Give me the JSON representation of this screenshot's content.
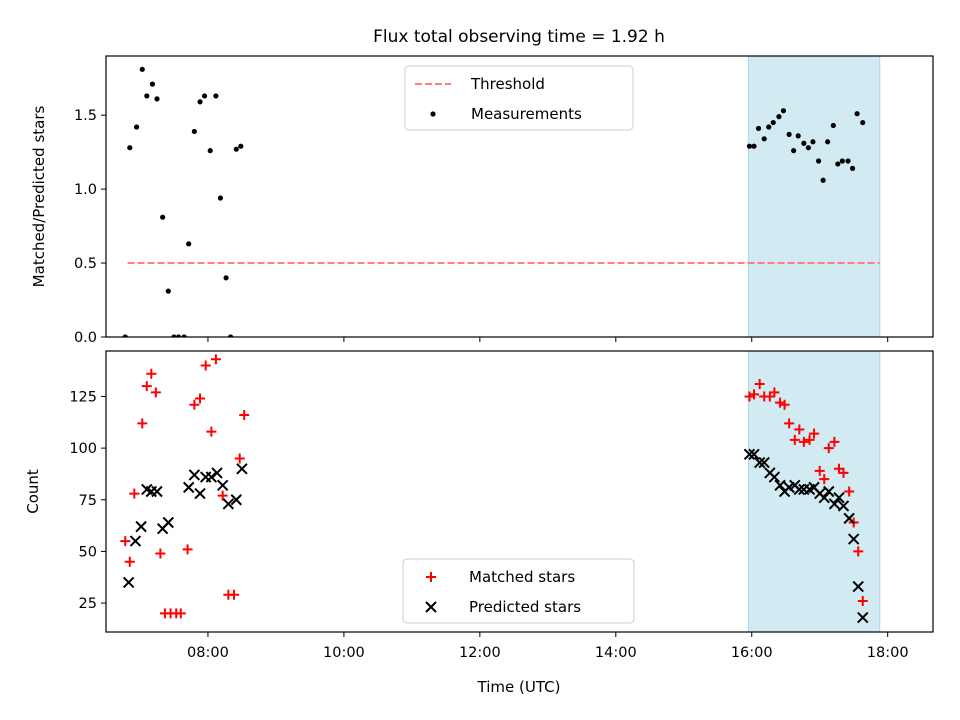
{
  "figure": {
    "title": "Flux total observing time = 1.92 h",
    "xlabel": "Time (UTC)",
    "xticks": [
      "08:00",
      "10:00",
      "12:00",
      "14:00",
      "16:00",
      "18:00"
    ],
    "highlight_color": "#add8e6"
  },
  "chart_data": [
    {
      "type": "scatter",
      "ylabel": "Matched/Predicted stars",
      "xlim": [
        "06:30",
        "18:40"
      ],
      "ylim": [
        0,
        1.9
      ],
      "yticks": [
        "0.0",
        "0.5",
        "1.0",
        "1.5"
      ],
      "highlight_span": [
        "15:57",
        "17:53"
      ],
      "legend_position": "upper center",
      "threshold": {
        "name": "Threshold",
        "value": 0.5,
        "x_range": [
          "06:49",
          "17:53"
        ],
        "color": "#ff7f7f",
        "style": "dashed"
      },
      "series": [
        {
          "name": "Measurements",
          "marker": "dot",
          "color": "#000000",
          "points": [
            [
              "06:47",
              0.0
            ],
            [
              "06:51",
              1.28
            ],
            [
              "06:57",
              1.42
            ],
            [
              "07:02",
              1.81
            ],
            [
              "07:06",
              1.63
            ],
            [
              "07:11",
              1.71
            ],
            [
              "07:15",
              1.61
            ],
            [
              "07:20",
              0.81
            ],
            [
              "07:25",
              0.31
            ],
            [
              "07:30",
              0.0
            ],
            [
              "07:34",
              0.0
            ],
            [
              "07:39",
              0.0
            ],
            [
              "07:43",
              0.63
            ],
            [
              "07:48",
              1.39
            ],
            [
              "07:53",
              1.59
            ],
            [
              "07:57",
              1.63
            ],
            [
              "08:02",
              1.26
            ],
            [
              "08:07",
              1.63
            ],
            [
              "08:11",
              0.94
            ],
            [
              "08:16",
              0.4
            ],
            [
              "08:20",
              0.0
            ],
            [
              "08:25",
              1.27
            ],
            [
              "08:29",
              1.29
            ],
            [
              "15:58",
              1.29
            ],
            [
              "16:02",
              1.29
            ],
            [
              "16:06",
              1.41
            ],
            [
              "16:11",
              1.34
            ],
            [
              "16:15",
              1.42
            ],
            [
              "16:19",
              1.45
            ],
            [
              "16:24",
              1.49
            ],
            [
              "16:28",
              1.53
            ],
            [
              "16:33",
              1.37
            ],
            [
              "16:37",
              1.26
            ],
            [
              "16:41",
              1.36
            ],
            [
              "16:46",
              1.31
            ],
            [
              "16:50",
              1.28
            ],
            [
              "16:54",
              1.32
            ],
            [
              "16:59",
              1.19
            ],
            [
              "17:03",
              1.06
            ],
            [
              "17:07",
              1.32
            ],
            [
              "17:12",
              1.43
            ],
            [
              "17:16",
              1.17
            ],
            [
              "17:20",
              1.19
            ],
            [
              "17:25",
              1.19
            ],
            [
              "17:29",
              1.14
            ],
            [
              "17:33",
              1.51
            ],
            [
              "17:38",
              1.45
            ]
          ]
        }
      ]
    },
    {
      "type": "scatter",
      "ylabel": "Count",
      "xlim": [
        "06:30",
        "18:40"
      ],
      "ylim": [
        11,
        147
      ],
      "yticks": [
        "25",
        "50",
        "75",
        "100",
        "125"
      ],
      "highlight_span": [
        "15:57",
        "17:53"
      ],
      "legend_position": "lower center",
      "series": [
        {
          "name": "Matched stars",
          "marker": "plus",
          "color": "#ff0000",
          "points": [
            [
              "06:47",
              55
            ],
            [
              "06:51",
              45
            ],
            [
              "06:55",
              78
            ],
            [
              "07:02",
              112
            ],
            [
              "07:06",
              130
            ],
            [
              "07:10",
              136
            ],
            [
              "07:14",
              127
            ],
            [
              "07:18",
              49
            ],
            [
              "07:22",
              20
            ],
            [
              "07:27",
              20
            ],
            [
              "07:32",
              20
            ],
            [
              "07:36",
              20
            ],
            [
              "07:42",
              51
            ],
            [
              "07:48",
              121
            ],
            [
              "07:53",
              124
            ],
            [
              "07:58",
              140
            ],
            [
              "08:03",
              108
            ],
            [
              "08:07",
              143
            ],
            [
              "08:13",
              77
            ],
            [
              "08:18",
              29
            ],
            [
              "08:23",
              29
            ],
            [
              "08:28",
              95
            ],
            [
              "08:32",
              116
            ],
            [
              "15:58",
              125
            ],
            [
              "16:02",
              126
            ],
            [
              "16:07",
              131
            ],
            [
              "16:11",
              125
            ],
            [
              "16:16",
              125
            ],
            [
              "16:20",
              127
            ],
            [
              "16:25",
              122
            ],
            [
              "16:29",
              121
            ],
            [
              "16:33",
              112
            ],
            [
              "16:38",
              104
            ],
            [
              "16:42",
              109
            ],
            [
              "16:46",
              103
            ],
            [
              "16:51",
              104
            ],
            [
              "16:55",
              107
            ],
            [
              "17:00",
              89
            ],
            [
              "17:04",
              85
            ],
            [
              "17:08",
              100
            ],
            [
              "17:13",
              103
            ],
            [
              "17:17",
              90
            ],
            [
              "17:21",
              88
            ],
            [
              "17:26",
              79
            ],
            [
              "17:30",
              64
            ],
            [
              "17:34",
              50
            ],
            [
              "17:38",
              26
            ]
          ]
        },
        {
          "name": "Predicted stars",
          "marker": "x",
          "color": "#000000",
          "points": [
            [
              "06:50",
              35
            ],
            [
              "06:56",
              55
            ],
            [
              "07:01",
              62
            ],
            [
              "07:06",
              80
            ],
            [
              "07:10",
              79
            ],
            [
              "07:15",
              79
            ],
            [
              "07:20",
              61
            ],
            [
              "07:25",
              64
            ],
            [
              "07:43",
              81
            ],
            [
              "07:48",
              87
            ],
            [
              "07:53",
              78
            ],
            [
              "07:58",
              86
            ],
            [
              "08:03",
              86
            ],
            [
              "08:08",
              88
            ],
            [
              "08:13",
              82
            ],
            [
              "08:18",
              73
            ],
            [
              "08:25",
              75
            ],
            [
              "08:30",
              90
            ],
            [
              "15:58",
              97
            ],
            [
              "16:02",
              97
            ],
            [
              "16:07",
              93
            ],
            [
              "16:11",
              93
            ],
            [
              "16:16",
              88
            ],
            [
              "16:20",
              86
            ],
            [
              "16:25",
              82
            ],
            [
              "16:29",
              79
            ],
            [
              "16:33",
              81
            ],
            [
              "16:38",
              82
            ],
            [
              "16:42",
              80
            ],
            [
              "16:46",
              80
            ],
            [
              "16:51",
              80
            ],
            [
              "16:55",
              81
            ],
            [
              "17:00",
              78
            ],
            [
              "17:04",
              76
            ],
            [
              "17:08",
              79
            ],
            [
              "17:13",
              73
            ],
            [
              "17:17",
              76
            ],
            [
              "17:21",
              72
            ],
            [
              "17:26",
              66
            ],
            [
              "17:30",
              56
            ],
            [
              "17:34",
              33
            ],
            [
              "17:38",
              18
            ]
          ]
        }
      ]
    }
  ]
}
